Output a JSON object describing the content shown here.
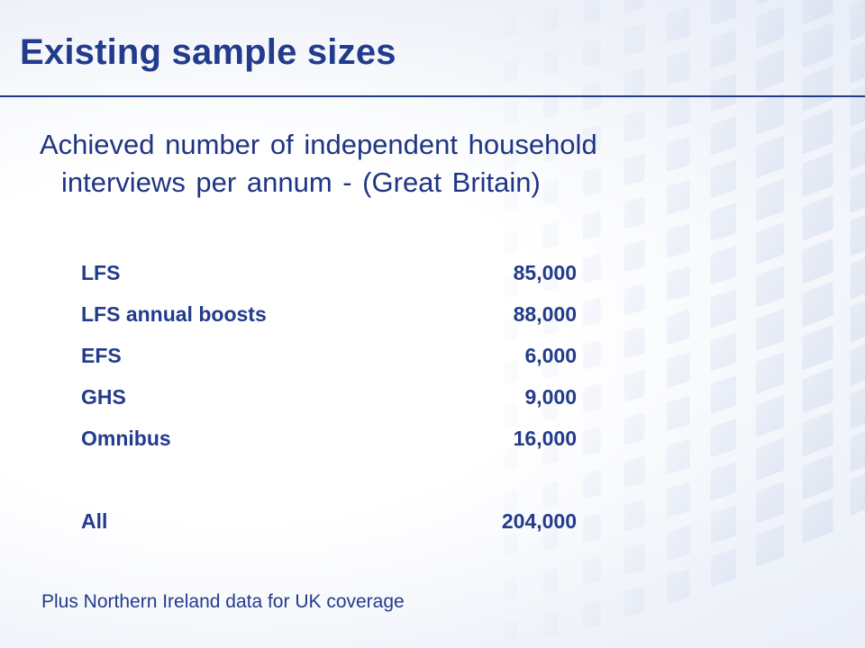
{
  "title": "Existing sample sizes",
  "intro": {
    "line1": "Achieved number of independent household",
    "line2": "interviews per annum - (Great Britain)"
  },
  "rows": [
    {
      "label": "LFS",
      "value": "85,000"
    },
    {
      "label": "LFS annual boosts",
      "value": "88,000"
    },
    {
      "label": "EFS",
      "value": "6,000"
    },
    {
      "label": "GHS",
      "value": "9,000"
    },
    {
      "label": "Omnibus",
      "value": "16,000"
    }
  ],
  "total": {
    "label": "All",
    "value": "204,000"
  },
  "footnote": "Plus Northern Ireland data for UK coverage",
  "colors": {
    "text": "#233b8c",
    "rule": "#233b8c"
  }
}
